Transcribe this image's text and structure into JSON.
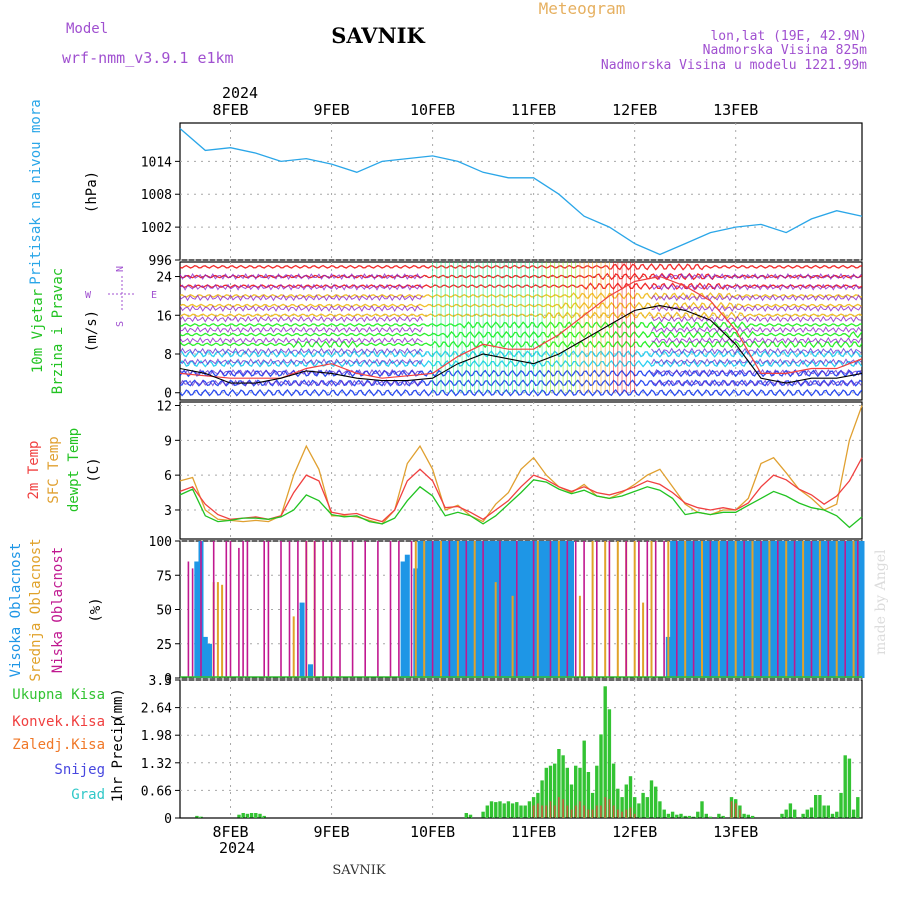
{
  "header": {
    "model_label": "Model",
    "model_name": "wrf-nmm_v3.9.1  e1km",
    "station": "SAVNIK",
    "product": "Meteogram",
    "location": "lon,lat (19E, 42.9N)",
    "elevation": "Nadmorska Visina 825m",
    "model_elevation": "Nadmorska Visina u modelu 1221.99m",
    "watermark": "made by Angel",
    "footer_station": "SAVNIK"
  },
  "colors": {
    "pressure": "#2aa6e8",
    "temp2m": "#f04040",
    "sfc_temp": "#e0a030",
    "dewpoint": "#22c322",
    "cloud_high": "#1e96e6",
    "cloud_mid": "#e0a22a",
    "cloud_low": "#c01890",
    "precip_total": "#33c333",
    "precip_conv": "#f04040",
    "wind_label": "#22c322",
    "grid": "#a8a8a8"
  },
  "time_axis": {
    "year": "2024",
    "labels": [
      "8FEB",
      "9FEB",
      "10FEB",
      "11FEB",
      "12FEB",
      "13FEB"
    ]
  },
  "chart_data": [
    {
      "type": "line",
      "id": "pressure",
      "ylabel": [
        "Pritisak na nivou mora",
        "(hPa)"
      ],
      "ylim": [
        996,
        1021
      ],
      "yticks": [
        "996",
        "1002",
        "1008",
        "1014"
      ],
      "x": [
        0,
        6,
        12,
        18,
        24,
        30,
        36,
        42,
        48,
        54,
        60,
        66,
        72,
        78,
        84,
        90,
        96,
        102,
        108,
        114,
        120,
        126,
        132,
        138,
        144,
        150,
        156,
        162
      ],
      "series": [
        {
          "name": "",
          "values": [
            1020,
            1016,
            1016.5,
            1015.5,
            1014,
            1014.5,
            1013.5,
            1012,
            1014,
            1014.5,
            1015,
            1014,
            1012,
            1011,
            1011,
            1008,
            1004,
            1002,
            999,
            997,
            999,
            1001,
            1002,
            1002.5,
            1001,
            1003.5,
            1005,
            1004
          ]
        }
      ]
    },
    {
      "type": "line",
      "id": "wind",
      "ylabel": [
        "10m Vjetar",
        "Brzina i Pravac",
        "(m/s)"
      ],
      "legend_rose": {
        "n": "N",
        "s": "S",
        "e": "E",
        "w": "W"
      },
      "ylim": [
        -1.5,
        27
      ],
      "yticks": [
        "0",
        "8",
        "16",
        "24"
      ],
      "x": [
        0,
        6,
        12,
        18,
        24,
        30,
        36,
        42,
        48,
        54,
        60,
        66,
        72,
        78,
        84,
        90,
        96,
        102,
        108,
        114,
        120,
        126,
        132,
        138,
        144,
        150,
        156,
        162
      ],
      "series": [
        {
          "name": "",
          "values": [
            5,
            4,
            2,
            2,
            3,
            4.5,
            4,
            3,
            2.5,
            2.5,
            3,
            6,
            8,
            7,
            6,
            8,
            11,
            14,
            17,
            18,
            17,
            15,
            10,
            3,
            2,
            3,
            3,
            4
          ]
        },
        {
          "name": "",
          "values": [
            4,
            3.5,
            3,
            3,
            3,
            5,
            6,
            4,
            3,
            3.5,
            4,
            7.5,
            10,
            9,
            9,
            12,
            16,
            20,
            23,
            24,
            22,
            19,
            13,
            4,
            4,
            5,
            5,
            7
          ]
        }
      ],
      "speed_bands": [
        0,
        2,
        4,
        6,
        8,
        10,
        12,
        14,
        16,
        18,
        20,
        22,
        24,
        26
      ]
    },
    {
      "type": "line",
      "id": "temperature",
      "ylabel": [
        "2m Temp",
        "SFC Temp",
        "dewpt Temp",
        "(C)"
      ],
      "ylim": [
        0.5,
        12.3
      ],
      "yticks": [
        "3",
        "6",
        "9",
        "12"
      ],
      "x": [
        0,
        3,
        6,
        9,
        12,
        15,
        18,
        21,
        24,
        27,
        30,
        33,
        36,
        39,
        42,
        45,
        48,
        51,
        54,
        57,
        60,
        63,
        66,
        69,
        72,
        75,
        78,
        81,
        84,
        87,
        90,
        93,
        96,
        99,
        102,
        105,
        108,
        111,
        114,
        117,
        120,
        123,
        126,
        129,
        132,
        135,
        138,
        141,
        144,
        147,
        150,
        153,
        156,
        159,
        162
      ],
      "series": [
        {
          "name": "2m Temp",
          "values": [
            4.6,
            5,
            3.5,
            2.6,
            2.2,
            2.3,
            2.4,
            2.2,
            2.5,
            4.5,
            6,
            5.5,
            2.8,
            2.6,
            2.7,
            2.3,
            2,
            3,
            5.5,
            6.5,
            5.5,
            3.2,
            3.3,
            2.8,
            2.2,
            3,
            3.8,
            5,
            6,
            5.6,
            5,
            4.6,
            5,
            4.5,
            4.3,
            4.6,
            5,
            5.5,
            5.2,
            4.5,
            3.6,
            3.2,
            3,
            3.2,
            3,
            3.6,
            5,
            6,
            5.6,
            4.8,
            4.3,
            3.5,
            4.2,
            5.5,
            7.5
          ]
        },
        {
          "name": "SFC Temp",
          "values": [
            5.5,
            5.8,
            3,
            2.2,
            2.1,
            2,
            2.1,
            2,
            2.5,
            6,
            8.5,
            6.5,
            2.5,
            2.5,
            2.4,
            2.1,
            1.8,
            3,
            7,
            8.5,
            6.5,
            3,
            3.4,
            2.5,
            2,
            3.5,
            4.5,
            6.5,
            7.5,
            6,
            5,
            4.5,
            5.2,
            4.2,
            4,
            4.5,
            5.2,
            6,
            6.5,
            5,
            3.5,
            2.8,
            2.6,
            3,
            3,
            4,
            7,
            7.5,
            6.2,
            4.8,
            4,
            3,
            3.5,
            9,
            12
          ]
        },
        {
          "name": "dewpt Temp",
          "values": [
            4.3,
            4.8,
            2.5,
            2,
            2.1,
            2.3,
            2.3,
            2.2,
            2.4,
            3,
            4.3,
            3.8,
            2.6,
            2.4,
            2.5,
            2,
            1.8,
            2.3,
            3.8,
            5,
            4.2,
            2.5,
            2.8,
            2.5,
            1.8,
            2.5,
            3.5,
            4.5,
            5.6,
            5.4,
            4.8,
            4.4,
            4.7,
            4.2,
            4,
            4.2,
            4.6,
            5,
            4.7,
            4,
            2.6,
            2.8,
            2.6,
            2.8,
            2.8,
            3.4,
            4,
            4.6,
            4.2,
            3.6,
            3.2,
            3,
            2.5,
            1.5,
            2.4
          ]
        }
      ]
    },
    {
      "type": "bar",
      "id": "clouds",
      "ylabel": [
        "Visoka Oblacnost",
        "Srednja Oblacnost",
        "Niska Oblacnost",
        "(%)"
      ],
      "ylim": [
        0,
        100
      ],
      "yticks": [
        "0",
        "25",
        "50",
        "75",
        "100"
      ],
      "series": [
        {
          "name": "Visoka Oblacnost",
          "x": [
            4,
            5,
            6,
            7,
            29,
            31,
            53,
            54,
            56,
            57,
            58,
            59,
            60,
            61,
            62,
            63,
            64,
            65,
            66,
            67,
            68,
            69,
            70,
            71,
            72,
            73,
            74,
            75,
            76,
            77,
            78,
            79,
            80,
            81,
            82,
            83,
            84,
            85,
            86,
            87,
            88,
            89,
            90,
            91,
            92,
            93,
            116,
            117,
            118,
            119,
            120,
            121,
            122,
            123,
            124,
            125,
            126,
            127,
            128,
            129,
            130,
            131,
            132,
            133,
            134,
            135,
            136,
            137,
            138,
            139,
            140,
            141,
            142,
            143,
            144,
            145,
            146,
            147,
            148,
            149,
            150,
            151,
            152,
            153,
            154,
            155,
            156,
            157,
            158,
            159,
            160,
            161,
            162
          ],
          "values": [
            85,
            100,
            30,
            25,
            55,
            10,
            85,
            90,
            80,
            100,
            100,
            100,
            100,
            100,
            100,
            100,
            100,
            100,
            100,
            100,
            100,
            100,
            100,
            100,
            100,
            100,
            100,
            100,
            100,
            100,
            100,
            100,
            100,
            100,
            100,
            100,
            100,
            100,
            100,
            100,
            100,
            100,
            100,
            100,
            100,
            100,
            30,
            100,
            100,
            100,
            100,
            100,
            100,
            100,
            100,
            100,
            100,
            100,
            100,
            100,
            100,
            100,
            100,
            100,
            100,
            100,
            100,
            100,
            100,
            100,
            100,
            100,
            100,
            100,
            100,
            100,
            100,
            100,
            100,
            100,
            100,
            100,
            100,
            100,
            100,
            100,
            100,
            100,
            100,
            100,
            100,
            100,
            100
          ]
        },
        {
          "name": "Srednja Oblacnost",
          "x": [
            8,
            9,
            10,
            27,
            30,
            32,
            56,
            58,
            62,
            66,
            70,
            75,
            79,
            85,
            90,
            95,
            98,
            101,
            104,
            106,
            108,
            109,
            110,
            112,
            116,
            120,
            124,
            128,
            132,
            136,
            140,
            144,
            148,
            152,
            156,
            160
          ],
          "values": [
            70,
            70,
            68,
            45,
            100,
            100,
            100,
            100,
            100,
            100,
            100,
            70,
            60,
            100,
            100,
            60,
            100,
            100,
            100,
            100,
            100,
            35,
            55,
            100,
            100,
            100,
            100,
            100,
            100,
            100,
            100,
            100,
            100,
            100,
            100,
            100
          ]
        },
        {
          "name": "Niska Oblacnost",
          "x": [
            2,
            3,
            5,
            8,
            11,
            12,
            14,
            15,
            16,
            20,
            21,
            24,
            26,
            28,
            30,
            32,
            34,
            36,
            38,
            41,
            44,
            47,
            50,
            52,
            55,
            60,
            64,
            68,
            72,
            76,
            80,
            84,
            88,
            92,
            94,
            96,
            99,
            102,
            106,
            109,
            111,
            113,
            115,
            118,
            122,
            126,
            130,
            134,
            138,
            142,
            146,
            150,
            154,
            158,
            161
          ],
          "values": [
            85,
            80,
            100,
            100,
            100,
            100,
            95,
            100,
            100,
            100,
            100,
            100,
            100,
            100,
            100,
            100,
            100,
            100,
            100,
            100,
            100,
            100,
            100,
            100,
            100,
            100,
            100,
            100,
            100,
            100,
            100,
            100,
            100,
            100,
            100,
            100,
            100,
            100,
            100,
            100,
            100,
            100,
            100,
            100,
            100,
            100,
            100,
            100,
            100,
            100,
            100,
            100,
            100,
            100,
            100
          ]
        }
      ]
    },
    {
      "type": "bar",
      "id": "precip",
      "ylabel": [
        "1hr Precip",
        "(mm)"
      ],
      "legend": [
        "Ukupna  Kisa",
        "Konvek.Kisa",
        "Zaledj.Kisa",
        "Snijeg",
        "Grad"
      ],
      "legend_colors": [
        "#33c333",
        "#f04040",
        "#f07828",
        "#4848e0",
        "#30c8c8"
      ],
      "ylim": [
        0,
        3.3
      ],
      "yticks": [
        "0",
        "0.66",
        "1.32",
        "1.98",
        "2.64",
        "3.3"
      ],
      "x": [
        4,
        5,
        14,
        15,
        16,
        17,
        18,
        19,
        20,
        68,
        69,
        72,
        73,
        74,
        75,
        76,
        77,
        78,
        79,
        80,
        81,
        82,
        83,
        84,
        85,
        86,
        87,
        88,
        89,
        90,
        91,
        92,
        93,
        94,
        95,
        96,
        97,
        98,
        99,
        100,
        101,
        102,
        103,
        104,
        105,
        106,
        107,
        108,
        109,
        110,
        111,
        112,
        113,
        114,
        115,
        116,
        117,
        118,
        119,
        120,
        121,
        122,
        123,
        124,
        125,
        126,
        128,
        129,
        131,
        132,
        133,
        134,
        135,
        136,
        143,
        144,
        145,
        146,
        148,
        149,
        150,
        151,
        152,
        153,
        154,
        155,
        156,
        157,
        158,
        159,
        160,
        161
      ],
      "series": [
        {
          "name": "Ukupna  Kisa",
          "values": [
            0.05,
            0.03,
            0.08,
            0.12,
            0.1,
            0.12,
            0.12,
            0.1,
            0.05,
            0.12,
            0.08,
            0.15,
            0.3,
            0.4,
            0.38,
            0.4,
            0.35,
            0.4,
            0.35,
            0.38,
            0.3,
            0.3,
            0.4,
            0.5,
            0.6,
            0.9,
            1.2,
            1.25,
            1.3,
            1.65,
            1.5,
            1.2,
            0.8,
            1.25,
            1.2,
            1.85,
            1.1,
            0.6,
            1.25,
            2.0,
            3.15,
            2.6,
            1.3,
            0.7,
            0.5,
            0.8,
            1.0,
            0.5,
            0.35,
            0.6,
            0.5,
            0.9,
            0.75,
            0.4,
            0.2,
            0.1,
            0.15,
            0.08,
            0.1,
            0.05,
            0.05,
            0.03,
            0.15,
            0.4,
            0.1,
            0.03,
            0.1,
            0.05,
            0.5,
            0.45,
            0.3,
            0.1,
            0.08,
            0.05,
            0.1,
            0.2,
            0.35,
            0.2,
            0.1,
            0.2,
            0.25,
            0.55,
            0.55,
            0.3,
            0.3,
            0.1,
            0.15,
            0.6,
            1.5,
            1.42,
            0.2,
            0.5
          ]
        },
        {
          "name": "Konvek.Kisa",
          "values": [
            0,
            0,
            0,
            0,
            0,
            0,
            0,
            0,
            0,
            0,
            0,
            0,
            0,
            0,
            0,
            0,
            0,
            0,
            0,
            0,
            0,
            0,
            0,
            0.3,
            0.35,
            0.3,
            0.3,
            0.4,
            0.3,
            0.5,
            0.45,
            0.3,
            0.2,
            0.3,
            0.4,
            0.3,
            0.2,
            0.2,
            0.3,
            0.3,
            0.5,
            0.45,
            0.3,
            0.2,
            0.15,
            0.2,
            0.25,
            0.1,
            0,
            0,
            0,
            0,
            0,
            0,
            0,
            0,
            0,
            0,
            0,
            0,
            0,
            0,
            0,
            0,
            0,
            0,
            0,
            0,
            0.4,
            0.35,
            0.2,
            0,
            0,
            0,
            0,
            0,
            0,
            0,
            0,
            0,
            0,
            0,
            0,
            0,
            0,
            0,
            0,
            0,
            0,
            0,
            0,
            0
          ]
        }
      ]
    }
  ]
}
